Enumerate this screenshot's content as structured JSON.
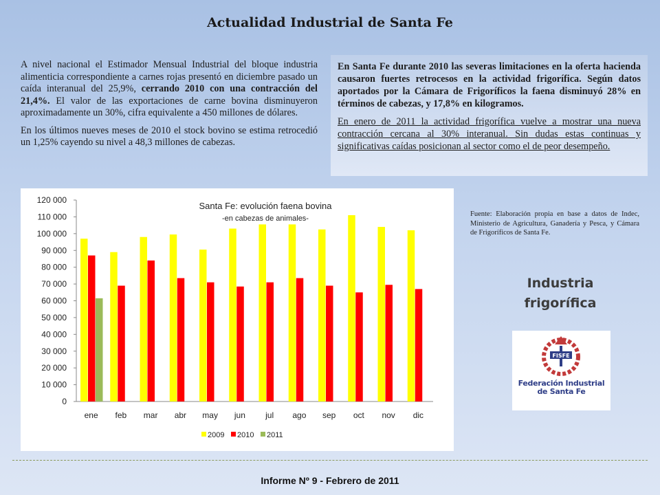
{
  "header": {
    "title": "Actualidad Industrial de Santa Fe"
  },
  "left_text": {
    "p1_a": "A nivel nacional el Estimador Mensual Industrial del bloque industria alimenticia correspondiente a carnes rojas presentó en diciembre pasado un caída interanual del 25,9%,",
    "p1_b": " cerrando 2010 con una contracción del 21,4%.",
    "p1_c": " El valor de las exportaciones de carne bovina disminuyeron aproximadamente un 30%, cifra equivalente a 450 millones  de dólares.",
    "p2": "En los últimos nueves meses de 2010 el stock bovino se estima retrocedió un 1,25%  cayendo su nivel a 48,3 millones  de cabezas."
  },
  "right_box": {
    "p1": "En Santa Fe durante 2010 las severas limitaciones en la oferta hacienda causaron fuertes retrocesos en la actividad frigorífica. Según datos aportados por la Cámara de Frigoríficos la faena disminuyó 28% en términos de cabezas, y 17,8% en kilogramos.",
    "p2": "En enero de 2011 la actividad frigorífica vuelve a mostrar una nueva contracción cercana al 30% interanual. Sin dudas estas continuas y significativas caídas posicionan al sector como el de peor desempeño."
  },
  "chart_data": {
    "type": "bar",
    "title": "Santa Fe: evolución faena bovina",
    "subtitle": "-en cabezas de animales-",
    "categories": [
      "ene",
      "feb",
      "mar",
      "abr",
      "may",
      "jun",
      "jul",
      "ago",
      "sep",
      "oct",
      "nov",
      "dic"
    ],
    "series": [
      {
        "name": "2009",
        "color": "#ffff00",
        "values": [
          97000,
          89000,
          98000,
          99500,
          90500,
          103000,
          105500,
          105500,
          102500,
          111000,
          104000,
          102000
        ]
      },
      {
        "name": "2010",
        "color": "#ff0000",
        "values": [
          87000,
          69000,
          84000,
          73500,
          71000,
          68500,
          71000,
          73500,
          69000,
          65000,
          69500,
          67000
        ]
      },
      {
        "name": "2011",
        "color": "#9bbb59",
        "values": [
          61500,
          null,
          null,
          null,
          null,
          null,
          null,
          null,
          null,
          null,
          null,
          null
        ]
      }
    ],
    "ylim": [
      0,
      120000
    ],
    "yticks": [
      "0",
      "10 000",
      "20 000",
      "30 000",
      "40 000",
      "50 000",
      "60 000",
      "70 000",
      "80 000",
      "90 000",
      "100 000",
      "110 000",
      "120 000"
    ],
    "legend_position": "bottom",
    "grid": false
  },
  "source_note": "Fuente: Elaboración propia en base a datos de Indec, Ministerio de Agricultura, Ganadería y Pesca, y Cámara de Frigoríficos de Santa Fe.",
  "industry_label": {
    "line1": "Industria",
    "line2": "frigorífica"
  },
  "logo": {
    "badge": "FISFE",
    "line1": "Federación Industrial",
    "line2": "de Santa Fe"
  },
  "footer": {
    "text": "Informe Nº 9 -  Febrero de 2011"
  }
}
